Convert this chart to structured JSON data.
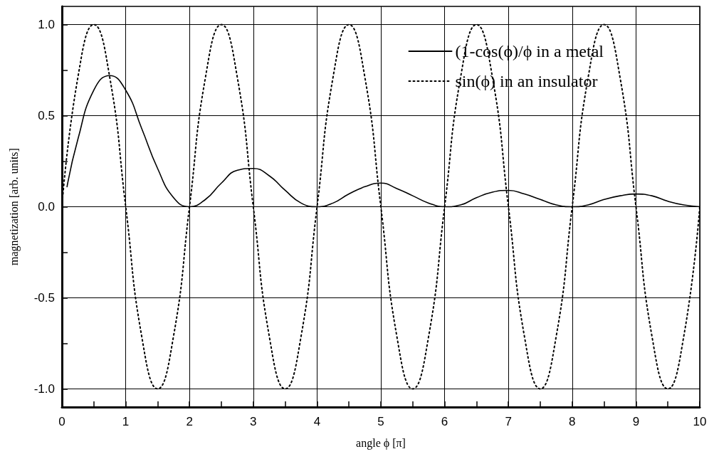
{
  "chart_data": {
    "type": "line",
    "xlabel": "angle ϕ [π]",
    "ylabel": "magnetization [arb. units]",
    "x": [
      0,
      0.25,
      0.5,
      0.75,
      1,
      1.25,
      1.5,
      1.75,
      2,
      2.25,
      2.5,
      2.75,
      3,
      3.25,
      3.5,
      3.75,
      4,
      4.25,
      4.5,
      4.75,
      5,
      5.25,
      5.5,
      5.75,
      6,
      6.25,
      6.5,
      6.75,
      7,
      7.25,
      7.5,
      7.75,
      8,
      8.25,
      8.5,
      8.75,
      9,
      9.25,
      9.5,
      9.75,
      10
    ],
    "series": [
      {
        "name": "(1-cos(ϕ)/ϕ in a metal",
        "color": "#000000",
        "line_style": "solid",
        "x": [
          0.08,
          0.25,
          0.5,
          0.75,
          1,
          1.25,
          1.5,
          1.75,
          2,
          2.25,
          2.5,
          2.75,
          3,
          3.25,
          3.5,
          3.75,
          4,
          4.25,
          4.5,
          4.75,
          5,
          5.25,
          5.5,
          5.75,
          6,
          6.25,
          6.5,
          6.75,
          7,
          7.25,
          7.5,
          7.75,
          8,
          8.25,
          8.5,
          8.75,
          9,
          9.25,
          9.5,
          9.75,
          10
        ],
        "values": [
          0.11,
          0.37,
          0.64,
          0.72,
          0.64,
          0.43,
          0.21,
          0.05,
          0,
          0.04,
          0.13,
          0.2,
          0.21,
          0.17,
          0.09,
          0.02,
          0,
          0.02,
          0.07,
          0.11,
          0.13,
          0.1,
          0.06,
          0.02,
          0,
          0.01,
          0.05,
          0.08,
          0.09,
          0.07,
          0.04,
          0.01,
          0,
          0.01,
          0.04,
          0.06,
          0.07,
          0.06,
          0.03,
          0.01,
          0
        ]
      },
      {
        "name": "sin(ϕ) in an insulator",
        "color": "#000000",
        "line_style": "dotted",
        "values": [
          0,
          0.71,
          1,
          0.71,
          0,
          -0.71,
          -1,
          -0.71,
          0,
          0.71,
          1,
          0.71,
          0,
          -0.71,
          -1,
          -0.71,
          0,
          0.71,
          1,
          0.71,
          0,
          -0.71,
          -1,
          -0.71,
          0,
          0.71,
          1,
          0.71,
          0,
          -0.71,
          -1,
          -0.71,
          0,
          0.71,
          1,
          0.71,
          0,
          -0.71,
          -1,
          -0.71,
          0
        ]
      }
    ],
    "xlim": [
      0,
      10
    ],
    "xticks": [
      0,
      {
        "value": 0.5,
        "label": null
      },
      1,
      {
        "value": 1.5,
        "label": null
      },
      2,
      {
        "value": 2.5,
        "label": null
      },
      3,
      {
        "value": 3.5,
        "label": null
      },
      4,
      {
        "value": 4.5,
        "label": null
      },
      5,
      {
        "value": 5.5,
        "label": null
      },
      6,
      {
        "value": 6.5,
        "label": null
      },
      7,
      {
        "value": 7.5,
        "label": null
      },
      8,
      {
        "value": 8.5,
        "label": null
      },
      9,
      {
        "value": 9.5,
        "label": null
      },
      10
    ],
    "ylim": [
      -1.1,
      1.1
    ],
    "yticks": [
      {
        "value": -1,
        "label": "-1.0"
      },
      {
        "value": -0.75,
        "label": null
      },
      {
        "value": -0.5,
        "label": "-0.5"
      },
      {
        "value": -0.25,
        "label": null
      },
      {
        "value": 0,
        "label": "0.0"
      },
      {
        "value": 0.25,
        "label": null
      },
      {
        "value": 0.5,
        "label": "0.5"
      },
      {
        "value": 0.75,
        "label": null
      },
      {
        "value": 1,
        "label": "1.0"
      }
    ],
    "grid": true,
    "legend": "top right",
    "marker": "none"
  }
}
